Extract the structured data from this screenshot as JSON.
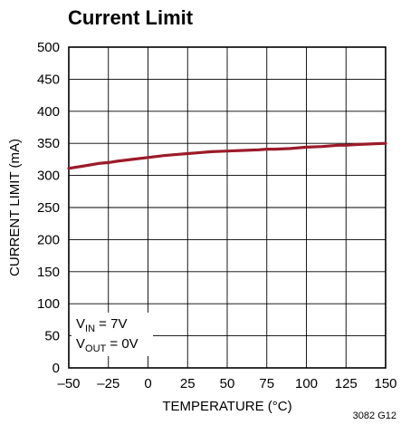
{
  "chart_data": {
    "type": "line",
    "title": "Current Limit",
    "xlabel": "TEMPERATURE (°C)",
    "ylabel": "CURRENT LIMIT (mA)",
    "xlim": [
      -50,
      150
    ],
    "ylim": [
      0,
      500
    ],
    "xticks": [
      -50,
      -25,
      0,
      25,
      50,
      75,
      100,
      125,
      150
    ],
    "xtick_labels": [
      "–50",
      "–25",
      "0",
      "25",
      "50",
      "75",
      "100",
      "125",
      "150"
    ],
    "yticks": [
      0,
      50,
      100,
      150,
      200,
      250,
      300,
      350,
      400,
      450,
      500
    ],
    "grid": true,
    "series": [
      {
        "color": "#9b1b2a",
        "x": [
          -50,
          -40,
          -30,
          -25,
          -20,
          -10,
          0,
          10,
          20,
          25,
          30,
          40,
          50,
          60,
          70,
          75,
          80,
          90,
          100,
          110,
          120,
          125,
          130,
          140,
          150
        ],
        "y": [
          311,
          315,
          319,
          320,
          322,
          325,
          328,
          331,
          333,
          334,
          335,
          337,
          338,
          339,
          340,
          341,
          341,
          342,
          344,
          345,
          347,
          347,
          348,
          349,
          350
        ]
      }
    ],
    "annotation": {
      "line1_main": "V",
      "line1_sub": "IN",
      "line1_rest": " = 7V",
      "line2_main": "V",
      "line2_sub": "OUT",
      "line2_rest": " = 0V"
    },
    "note": "3082 G12"
  }
}
